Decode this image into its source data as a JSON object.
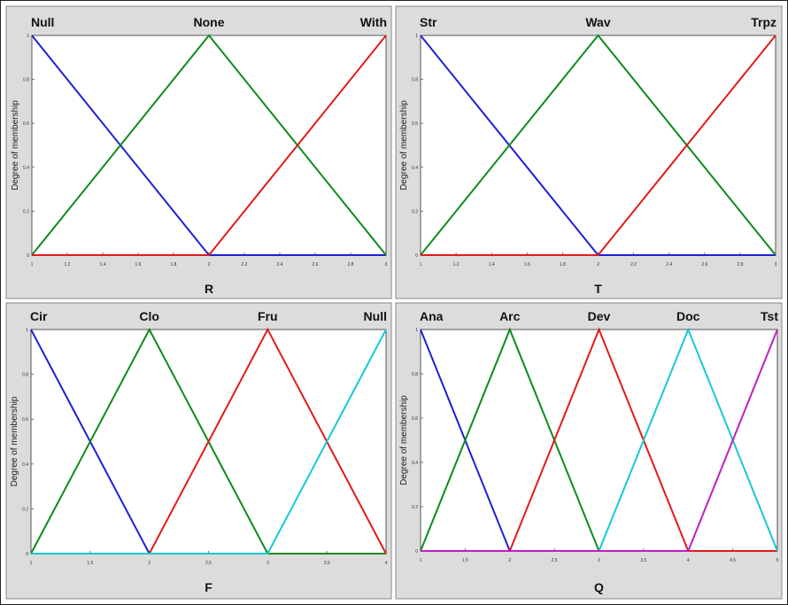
{
  "colors": {
    "panel_bg": "#dcdcdc",
    "plot_bg": "#ffffff",
    "frame": "#555555",
    "blue": "#1f1fd6",
    "green": "#0e8a1e",
    "red": "#e01b1b",
    "cyan": "#16c8d6",
    "magenta": "#c41cc4"
  },
  "chart_data": [
    {
      "type": "line",
      "panel": "top-left",
      "xlabel": "R",
      "ylabel": "Degree of membership",
      "xlim": [
        1,
        3
      ],
      "ylim": [
        0,
        1
      ],
      "xticks": [
        "1",
        "1.2",
        "1.4",
        "1.6",
        "1.8",
        "2",
        "2.2",
        "2.4",
        "2.6",
        "2.8",
        "3"
      ],
      "yticks": [
        "0",
        "0.2",
        "0.4",
        "0.6",
        "0.8",
        "1"
      ],
      "series": [
        {
          "name": "Null",
          "color": "blue",
          "x": [
            1,
            2,
            3
          ],
          "y": [
            1,
            0,
            0
          ]
        },
        {
          "name": "None",
          "color": "green",
          "x": [
            1,
            2,
            3
          ],
          "y": [
            0,
            1,
            0
          ]
        },
        {
          "name": "With",
          "color": "red",
          "x": [
            1,
            2,
            3
          ],
          "y": [
            0,
            0,
            1
          ]
        }
      ]
    },
    {
      "type": "line",
      "panel": "top-right",
      "xlabel": "T",
      "ylabel": "Degree of membership",
      "xlim": [
        1,
        3
      ],
      "ylim": [
        0,
        1
      ],
      "xticks": [
        "1",
        "1.2",
        "1.4",
        "1.6",
        "1.8",
        "2",
        "2.2",
        "2.4",
        "2.6",
        "2.8",
        "3"
      ],
      "yticks": [
        "0",
        "0.2",
        "0.4",
        "0.6",
        "0.8",
        "1"
      ],
      "series": [
        {
          "name": "Str",
          "color": "blue",
          "x": [
            1,
            2,
            3
          ],
          "y": [
            1,
            0,
            0
          ]
        },
        {
          "name": "Wav",
          "color": "green",
          "x": [
            1,
            2,
            3
          ],
          "y": [
            0,
            1,
            0
          ]
        },
        {
          "name": "Trpz",
          "color": "red",
          "x": [
            1,
            2,
            3
          ],
          "y": [
            0,
            0,
            1
          ]
        }
      ]
    },
    {
      "type": "line",
      "panel": "bottom-left",
      "xlabel": "F",
      "ylabel": "Degree of membership",
      "xlim": [
        1,
        4
      ],
      "ylim": [
        0,
        1
      ],
      "xticks": [
        "1",
        "1.5",
        "2",
        "2.5",
        "3",
        "3.5",
        "4"
      ],
      "yticks": [
        "0",
        "0.2",
        "0.4",
        "0.6",
        "0.8",
        "1"
      ],
      "series": [
        {
          "name": "Cir",
          "color": "blue",
          "x": [
            1,
            2,
            4
          ],
          "y": [
            1,
            0,
            0
          ]
        },
        {
          "name": "Clo",
          "color": "green",
          "x": [
            1,
            2,
            3,
            4
          ],
          "y": [
            0,
            1,
            0,
            0
          ]
        },
        {
          "name": "Fru",
          "color": "red",
          "x": [
            1,
            2,
            3,
            4
          ],
          "y": [
            0,
            0,
            1,
            0
          ]
        },
        {
          "name": "Null",
          "color": "cyan",
          "x": [
            1,
            3,
            4
          ],
          "y": [
            0,
            0,
            1
          ]
        }
      ]
    },
    {
      "type": "line",
      "panel": "bottom-right",
      "xlabel": "Q",
      "ylabel": "Degree of membership",
      "xlim": [
        1,
        5
      ],
      "ylim": [
        0,
        1
      ],
      "xticks": [
        "1",
        "1.5",
        "2",
        "2.5",
        "3",
        "3.5",
        "4",
        "4.5",
        "5"
      ],
      "yticks": [
        "0",
        "0.2",
        "0.4",
        "0.6",
        "0.8",
        "1"
      ],
      "series": [
        {
          "name": "Ana",
          "color": "blue",
          "x": [
            1,
            2,
            5
          ],
          "y": [
            1,
            0,
            0
          ]
        },
        {
          "name": "Arc",
          "color": "green",
          "x": [
            1,
            2,
            3,
            5
          ],
          "y": [
            0,
            1,
            0,
            0
          ]
        },
        {
          "name": "Dev",
          "color": "red",
          "x": [
            1,
            2,
            3,
            4,
            5
          ],
          "y": [
            0,
            0,
            1,
            0,
            0
          ]
        },
        {
          "name": "Doc",
          "color": "cyan",
          "x": [
            1,
            3,
            4,
            5
          ],
          "y": [
            0,
            0,
            1,
            0
          ]
        },
        {
          "name": "Tst",
          "color": "magenta",
          "x": [
            1,
            4,
            5
          ],
          "y": [
            0,
            0,
            1
          ]
        }
      ]
    }
  ]
}
